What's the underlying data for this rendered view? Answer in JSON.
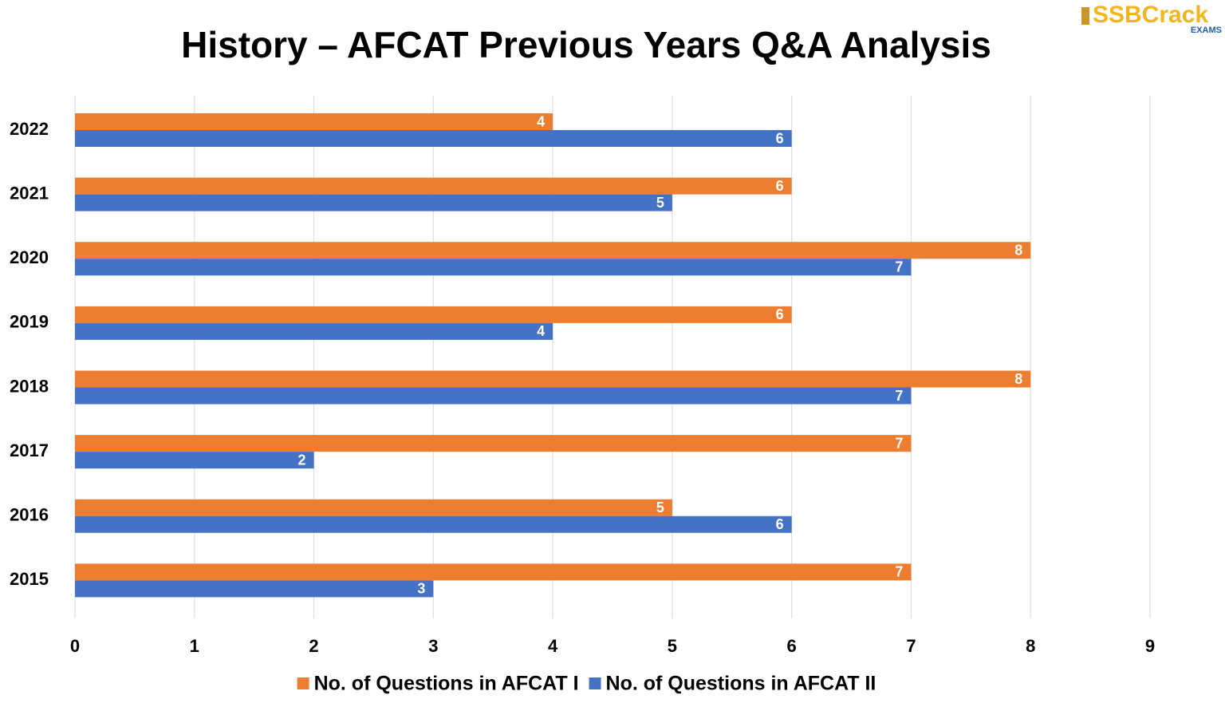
{
  "chart_data": {
    "type": "hbar",
    "title": "History – AFCAT Previous Years Q&A Analysis",
    "logo": "SSBCrack",
    "logo_sub": "EXAMS",
    "categories": [
      "2022",
      "2021",
      "2020",
      "2019",
      "2018",
      "2017",
      "2016",
      "2015"
    ],
    "series": [
      {
        "name": "No. of Questions in AFCAT I",
        "color": "#ed7d31",
        "values": [
          4,
          6,
          8,
          6,
          8,
          7,
          5,
          7
        ]
      },
      {
        "name": "No. of Questions in AFCAT II",
        "color": "#4472c4",
        "values": [
          6,
          5,
          7,
          4,
          7,
          2,
          6,
          3
        ]
      }
    ],
    "xlim": [
      0,
      9
    ],
    "xticks": [
      0,
      1,
      2,
      3,
      4,
      5,
      6,
      7,
      8,
      9
    ],
    "grid": true,
    "legend": "bottom"
  }
}
